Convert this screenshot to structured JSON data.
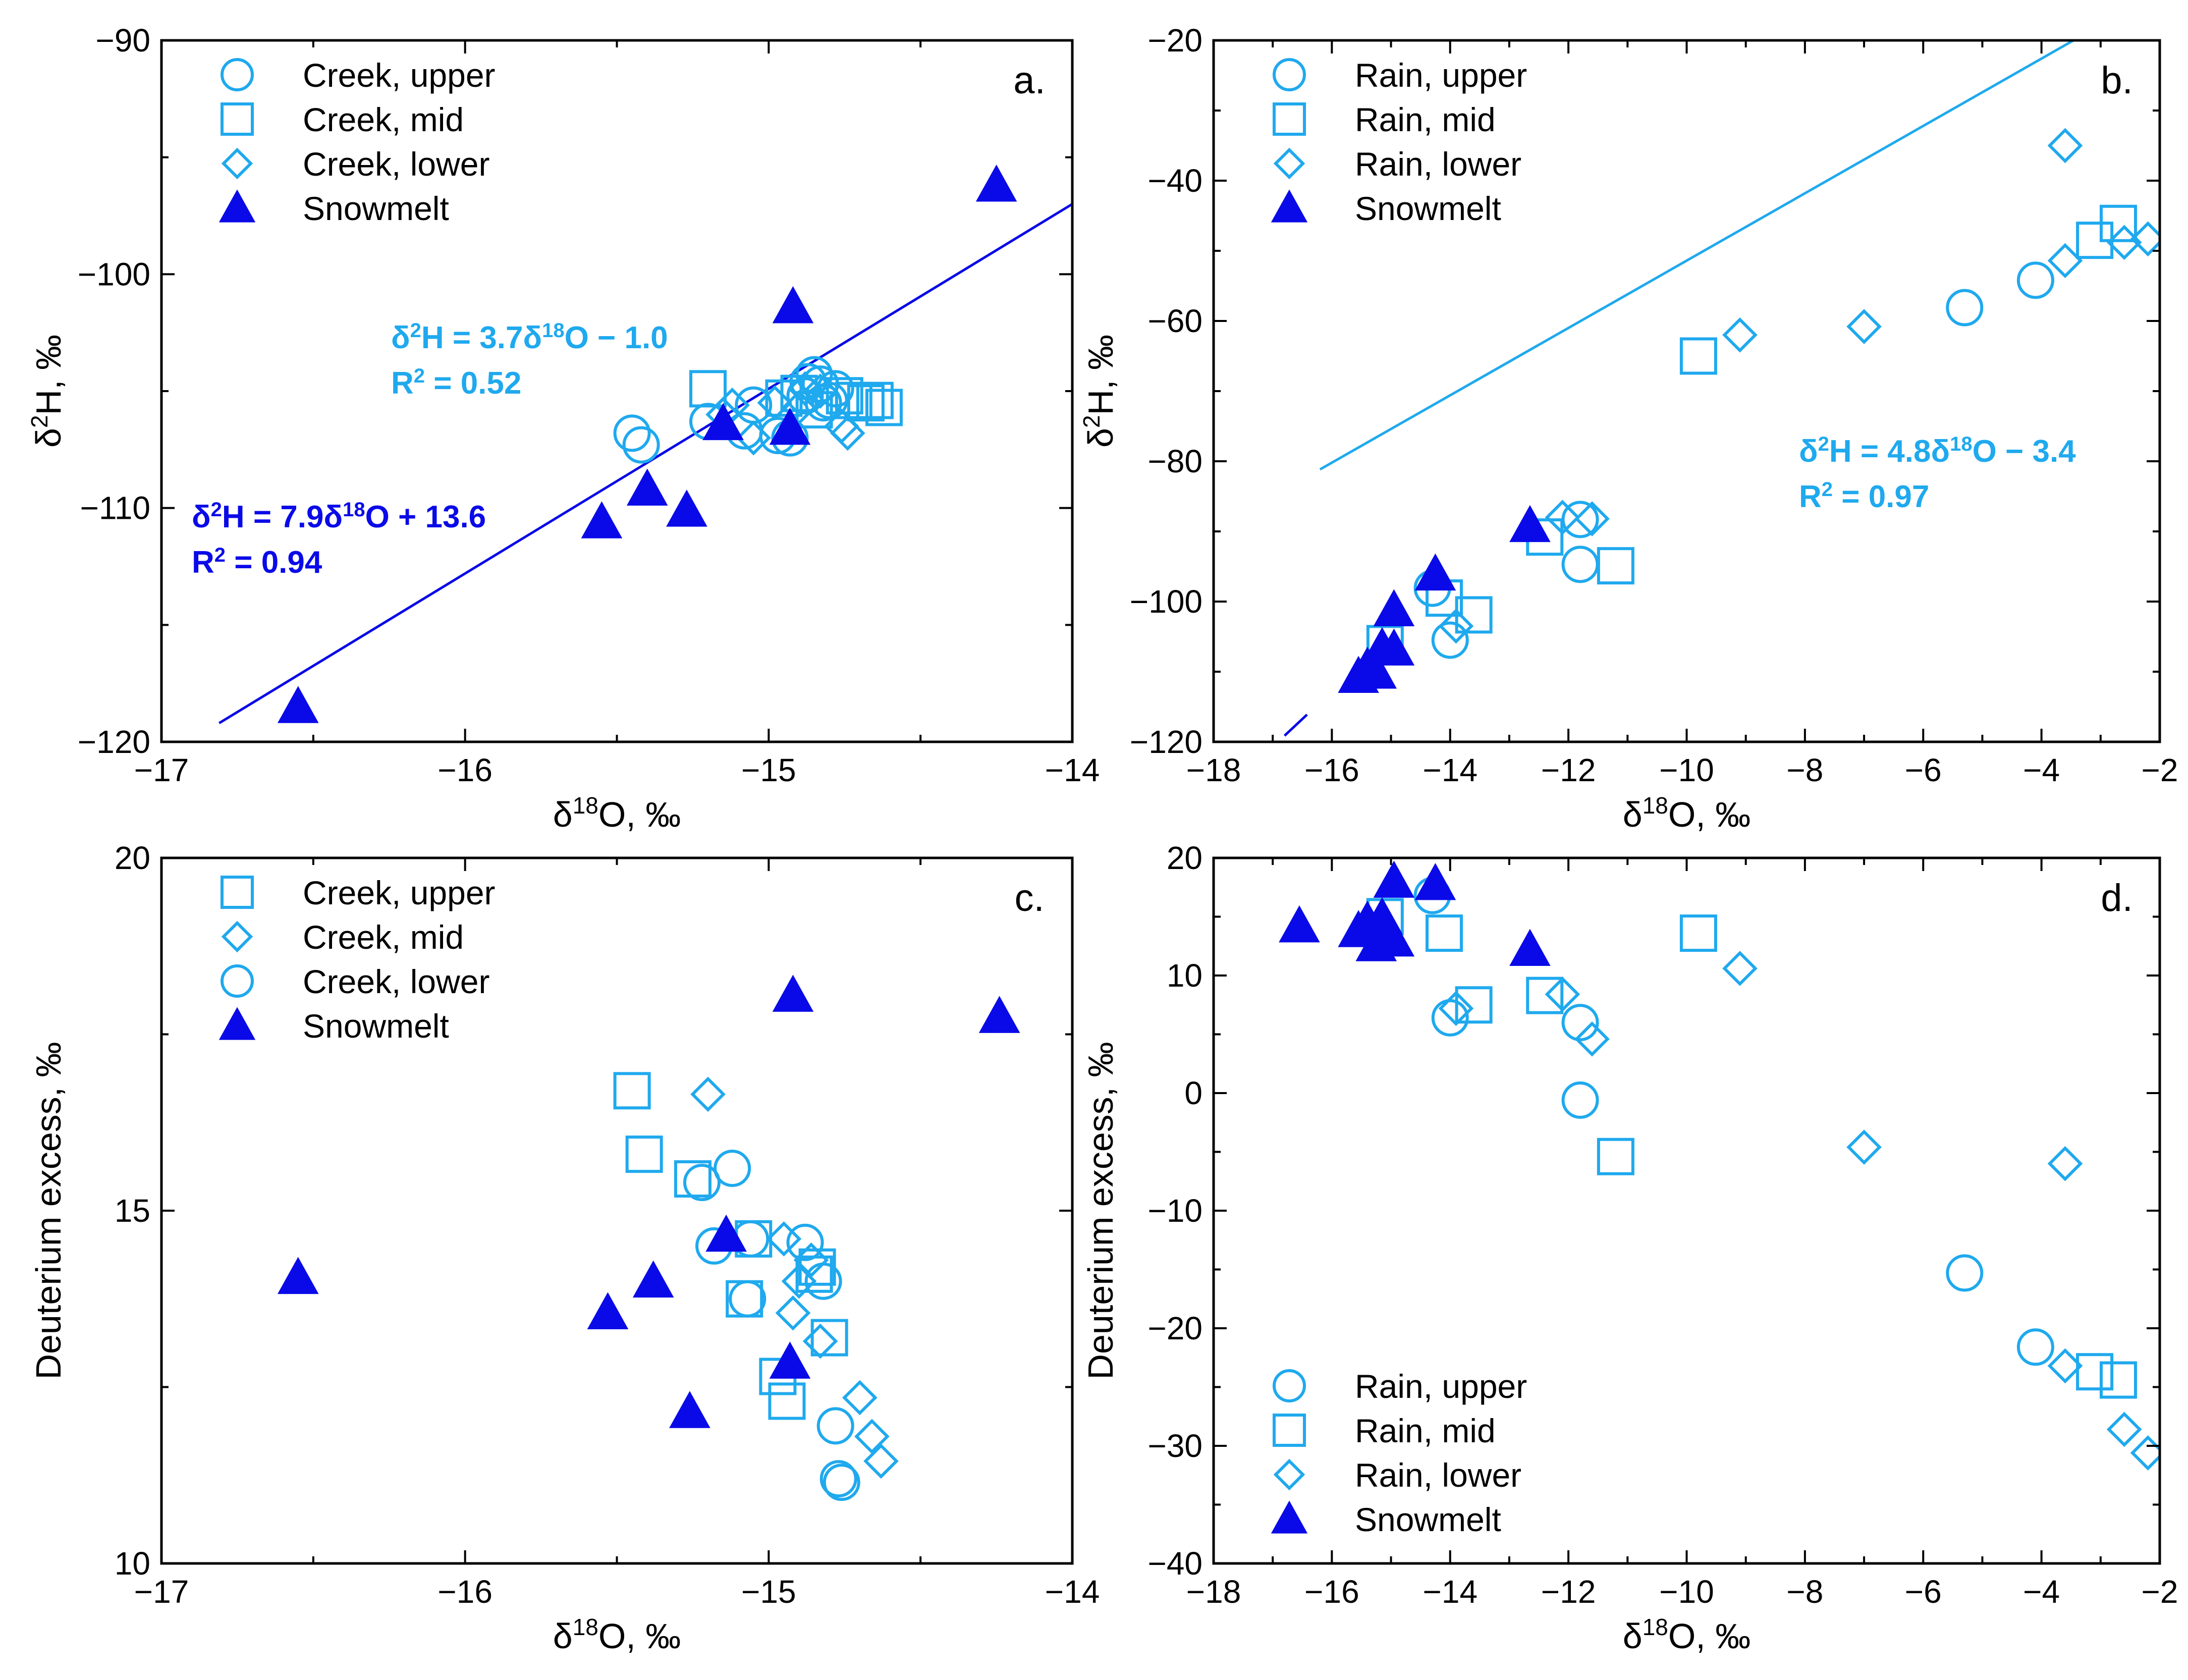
{
  "colors": {
    "light": "#1fa9ee",
    "dark": "#0a0ae8",
    "axis": "#000000"
  },
  "chart_data": [
    {
      "panel": "a",
      "type": "scatter",
      "panel_label": "a.",
      "xlabel": "δ18O, ‰",
      "ylabel": "δ2H, ‰",
      "xlim": [
        -17,
        -14
      ],
      "ylim": [
        -120,
        -90
      ],
      "xticks": [
        -17,
        -16,
        -15,
        -14
      ],
      "xtick_labels": [
        "−17",
        "−16",
        "−15",
        "−14"
      ],
      "yticks": [
        -120,
        -110,
        -100,
        -90
      ],
      "ytick_labels": [
        "−120",
        "−110",
        "−100",
        "−90"
      ],
      "legend_position": "top-left",
      "series": [
        {
          "name": "Creek, upper",
          "marker": "circle",
          "color": "light",
          "points": [
            [
              -15.45,
              -106.8
            ],
            [
              -15.42,
              -107.3
            ],
            [
              -15.2,
              -106.3
            ],
            [
              -15.08,
              -106.7
            ],
            [
              -15.05,
              -105.6
            ],
            [
              -14.97,
              -106.9
            ],
            [
              -14.93,
              -107.0
            ],
            [
              -14.88,
              -105.2
            ],
            [
              -14.87,
              -104.6
            ],
            [
              -14.85,
              -104.3
            ],
            [
              -14.83,
              -104.7
            ],
            [
              -14.82,
              -105.5
            ],
            [
              -14.8,
              -105.4
            ],
            [
              -14.78,
              -104.9
            ]
          ]
        },
        {
          "name": "Creek, mid",
          "marker": "square",
          "color": "light",
          "points": [
            [
              -15.2,
              -104.9
            ],
            [
              -14.95,
              -105.3
            ],
            [
              -14.9,
              -105.1
            ],
            [
              -14.85,
              -105.8
            ],
            [
              -14.75,
              -105.2
            ],
            [
              -14.72,
              -105.4
            ],
            [
              -14.68,
              -105.5
            ],
            [
              -14.65,
              -105.4
            ],
            [
              -14.62,
              -105.7
            ]
          ]
        },
        {
          "name": "Creek, lower",
          "marker": "diamond",
          "color": "light",
          "points": [
            [
              -15.15,
              -106.0
            ],
            [
              -15.12,
              -105.6
            ],
            [
              -15.05,
              -107.0
            ],
            [
              -14.98,
              -105.5
            ],
            [
              -14.88,
              -104.9
            ],
            [
              -14.83,
              -105.0
            ],
            [
              -14.76,
              -106.5
            ],
            [
              -14.74,
              -106.8
            ],
            [
              -14.9,
              -105.7
            ]
          ]
        },
        {
          "name": "Snowmelt",
          "marker": "triangle",
          "color": "dark",
          "points": [
            [
              -16.55,
              -118.5
            ],
            [
              -15.55,
              -110.6
            ],
            [
              -15.4,
              -109.2
            ],
            [
              -15.27,
              -110.1
            ],
            [
              -15.15,
              -106.4
            ],
            [
              -14.93,
              -106.6
            ],
            [
              -14.92,
              -101.4
            ],
            [
              -14.25,
              -96.2
            ]
          ]
        }
      ],
      "fits": [
        {
          "label_line1": "δ2H = 3.7δ18O − 1.0",
          "label_line2": "R2 = 0.52",
          "color": "light",
          "x_range": [
            -16,
            -14
          ]
        },
        {
          "label_line1": "δ2H = 7.9δ18O + 13.6",
          "label_line2": "R2 = 0.94",
          "color": "dark",
          "x_range": [
            -16.81,
            -14
          ]
        }
      ]
    },
    {
      "panel": "b",
      "type": "scatter",
      "panel_label": "b.",
      "xlabel": "δ18O, ‰",
      "ylabel": "δ2H, ‰",
      "xlim": [
        -18,
        -2
      ],
      "ylim": [
        -120,
        -20
      ],
      "xticks": [
        -18,
        -16,
        -14,
        -12,
        -10,
        -8,
        -6,
        -4,
        -2
      ],
      "xtick_labels": [
        "−18",
        "−16",
        "−14",
        "−12",
        "−10",
        "−8",
        "−6",
        "−4",
        "−2"
      ],
      "yticks": [
        -120,
        -100,
        -80,
        -60,
        -40,
        -20
      ],
      "ytick_labels": [
        "−120",
        "−100",
        "−80",
        "−60",
        "−40",
        "−20"
      ],
      "legend_position": "top-left",
      "series": [
        {
          "name": "Rain, upper",
          "marker": "circle",
          "color": "light",
          "points": [
            [
              -14.3,
              -98.1
            ],
            [
              -14.0,
              -105.5
            ],
            [
              -11.8,
              -94.7
            ],
            [
              -11.8,
              -88.3
            ],
            [
              -5.3,
              -58.1
            ],
            [
              -4.1,
              -54.2
            ]
          ]
        },
        {
          "name": "Rain, mid",
          "marker": "square",
          "color": "light",
          "points": [
            [
              -15.1,
              -106.0
            ],
            [
              -14.1,
              -99.5
            ],
            [
              -13.6,
              -101.9
            ],
            [
              -12.4,
              -90.8
            ],
            [
              -11.2,
              -94.9
            ],
            [
              -9.8,
              -65.0
            ],
            [
              -3.1,
              -48.5
            ],
            [
              -2.7,
              -46.1
            ]
          ]
        },
        {
          "name": "Rain, lower",
          "marker": "diamond",
          "color": "light",
          "points": [
            [
              -13.9,
              -103.5
            ],
            [
              -12.1,
              -88.0
            ],
            [
              -11.6,
              -88.2
            ],
            [
              -9.1,
              -62.0
            ],
            [
              -7.0,
              -60.8
            ],
            [
              -3.6,
              -51.4
            ],
            [
              -3.6,
              -35.0
            ],
            [
              -2.6,
              -48.8
            ],
            [
              -2.2,
              -48.3
            ]
          ]
        },
        {
          "name": "Snowmelt",
          "marker": "triangle",
          "color": "dark",
          "points": [
            [
              -15.55,
              -110.7
            ],
            [
              -15.4,
              -109.4
            ],
            [
              -15.25,
              -110.1
            ],
            [
              -15.15,
              -106.6
            ],
            [
              -14.95,
              -106.8
            ],
            [
              -14.95,
              -101.2
            ],
            [
              -14.25,
              -96.1
            ],
            [
              -12.65,
              -89.2
            ]
          ]
        }
      ],
      "fits": [
        {
          "label_line1": "δ2H = 4.8δ18O − 3.4",
          "label_line2": "R2 = 0.97",
          "color": "light",
          "x_range": [
            -16.2,
            -2
          ]
        },
        {
          "label_line1": "",
          "label_line2": "",
          "color": "dark",
          "x_range": [
            -16.8,
            -16.42
          ]
        }
      ]
    },
    {
      "panel": "c",
      "type": "scatter",
      "panel_label": "c.",
      "xlabel": "δ18O, ‰",
      "ylabel": "Deuterium excess, ‰",
      "xlim": [
        -17,
        -14
      ],
      "ylim": [
        10,
        20
      ],
      "xticks": [
        -17,
        -16,
        -15,
        -14
      ],
      "xtick_labels": [
        "−17",
        "−16",
        "−15",
        "−14"
      ],
      "yticks": [
        10,
        15,
        20
      ],
      "ytick_labels": [
        "10",
        "15",
        "20"
      ],
      "legend_position": "top-left",
      "series": [
        {
          "name": "Creek, upper",
          "marker": "square",
          "color": "light",
          "points": [
            [
              -15.45,
              16.7
            ],
            [
              -15.41,
              15.8
            ],
            [
              -15.25,
              15.45
            ],
            [
              -15.05,
              14.6
            ],
            [
              -15.08,
              13.75
            ],
            [
              -14.97,
              12.65
            ],
            [
              -14.94,
              12.3
            ],
            [
              -14.85,
              14.1
            ],
            [
              -14.84,
              14.2
            ],
            [
              -14.8,
              13.2
            ]
          ]
        },
        {
          "name": "Creek, mid",
          "marker": "diamond",
          "color": "light",
          "points": [
            [
              -15.2,
              16.65
            ],
            [
              -14.95,
              14.6
            ],
            [
              -14.92,
              13.55
            ],
            [
              -14.9,
              14.0
            ],
            [
              -14.86,
              14.3
            ],
            [
              -14.83,
              13.15
            ],
            [
              -14.7,
              12.35
            ],
            [
              -14.66,
              11.8
            ],
            [
              -14.63,
              11.45
            ]
          ]
        },
        {
          "name": "Creek, lower",
          "marker": "circle",
          "color": "light",
          "points": [
            [
              -15.12,
              15.6
            ],
            [
              -15.22,
              15.4
            ],
            [
              -15.18,
              14.5
            ],
            [
              -15.06,
              14.6
            ],
            [
              -15.07,
              13.75
            ],
            [
              -14.88,
              14.55
            ],
            [
              -14.82,
              14.0
            ],
            [
              -14.78,
              11.95
            ],
            [
              -14.77,
              11.2
            ],
            [
              -14.76,
              11.15
            ]
          ]
        },
        {
          "name": "Snowmelt",
          "marker": "triangle",
          "color": "dark",
          "points": [
            [
              -16.55,
              14.05
            ],
            [
              -15.53,
              13.55
            ],
            [
              -15.38,
              14.0
            ],
            [
              -15.26,
              12.15
            ],
            [
              -15.14,
              14.65
            ],
            [
              -14.92,
              18.05
            ],
            [
              -14.93,
              12.85
            ],
            [
              -14.24,
              17.75
            ]
          ]
        }
      ],
      "fits": []
    },
    {
      "panel": "d",
      "type": "scatter",
      "panel_label": "d.",
      "xlabel": "δ18O, ‰",
      "ylabel": "Deuterium excess, ‰",
      "xlim": [
        -18,
        -2
      ],
      "ylim": [
        -40,
        20
      ],
      "xticks": [
        -18,
        -16,
        -14,
        -12,
        -10,
        -8,
        -6,
        -4,
        -2
      ],
      "xtick_labels": [
        "−18",
        "−16",
        "−14",
        "−12",
        "−10",
        "−8",
        "−6",
        "−4",
        "−2"
      ],
      "yticks": [
        -40,
        -30,
        -20,
        -10,
        0,
        10,
        20
      ],
      "ytick_labels": [
        "−40",
        "−30",
        "−20",
        "−10",
        "0",
        "10",
        "20"
      ],
      "legend_position": "bottom-left",
      "series": [
        {
          "name": "Rain, upper",
          "marker": "circle",
          "color": "light",
          "points": [
            [
              -14.3,
              16.8
            ],
            [
              -14.0,
              6.4
            ],
            [
              -11.8,
              6.0
            ],
            [
              -11.8,
              -0.6
            ],
            [
              -5.3,
              -15.3
            ],
            [
              -4.1,
              -21.6
            ]
          ]
        },
        {
          "name": "Rain, mid",
          "marker": "square",
          "color": "light",
          "points": [
            [
              -15.1,
              15.0
            ],
            [
              -14.1,
              13.6
            ],
            [
              -13.6,
              7.5
            ],
            [
              -12.4,
              8.3
            ],
            [
              -11.2,
              -5.4
            ],
            [
              -9.8,
              13.6
            ],
            [
              -3.1,
              -23.7
            ],
            [
              -2.7,
              -24.4
            ]
          ]
        },
        {
          "name": "Rain, lower",
          "marker": "diamond",
          "color": "light",
          "points": [
            [
              -13.9,
              7.2
            ],
            [
              -12.1,
              8.4
            ],
            [
              -11.6,
              4.6
            ],
            [
              -9.1,
              10.6
            ],
            [
              -7.0,
              -4.6
            ],
            [
              -3.6,
              -6.0
            ],
            [
              -3.6,
              -23.2
            ],
            [
              -2.6,
              -28.6
            ],
            [
              -2.2,
              -30.6
            ]
          ]
        },
        {
          "name": "Snowmelt",
          "marker": "triangle",
          "color": "dark",
          "points": [
            [
              -16.55,
              14.2
            ],
            [
              -15.55,
              13.8
            ],
            [
              -15.4,
              14.6
            ],
            [
              -15.25,
              12.6
            ],
            [
              -15.15,
              14.9
            ],
            [
              -14.95,
              18.0
            ],
            [
              -14.95,
              13.0
            ],
            [
              -14.25,
              17.8
            ],
            [
              -12.65,
              12.2
            ]
          ]
        }
      ],
      "fits": []
    }
  ]
}
